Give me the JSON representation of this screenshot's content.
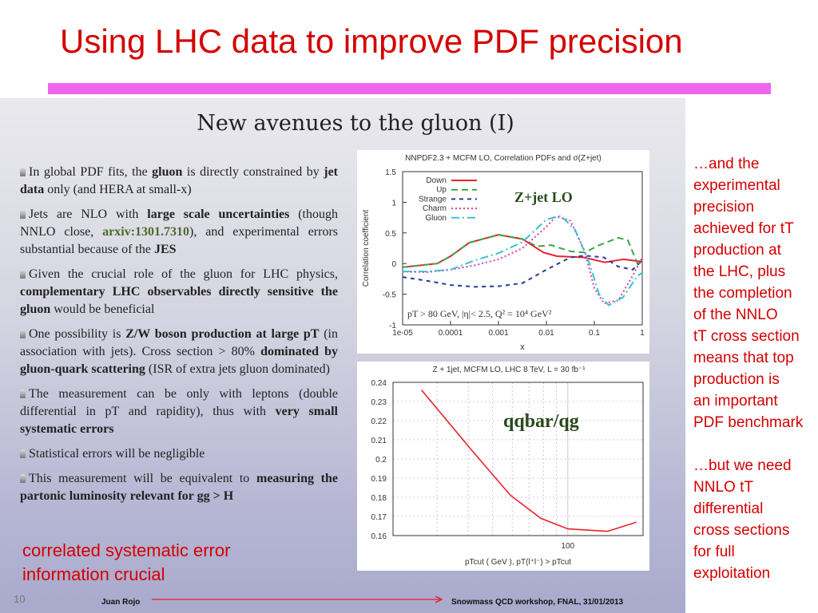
{
  "title": "Using LHC data to improve PDF precision",
  "embedded_slide": {
    "title": "New avenues to the gluon (I)",
    "bullets": [
      [
        [
          "In global PDF fits, the ",
          ""
        ],
        [
          "gluon",
          "b"
        ],
        [
          " is directly constrained by ",
          ""
        ],
        [
          "jet data",
          "b"
        ],
        [
          " only (and HERA at small-x)",
          ""
        ]
      ],
      [
        [
          "Jets are NLO with ",
          ""
        ],
        [
          "large scale uncertainties",
          "b"
        ],
        [
          " (though NNLO close, ",
          ""
        ],
        [
          "arxiv:1301.7310",
          "g"
        ],
        [
          "), and experimental errors substantial because of the ",
          ""
        ],
        [
          "JES",
          "b"
        ]
      ],
      [
        [
          "Given the crucial role of the gluon for LHC physics, ",
          ""
        ],
        [
          "complementary LHC observables directly sensitive the gluon",
          "b"
        ],
        [
          " would be beneficial",
          ""
        ]
      ],
      [
        [
          "One possibility is ",
          ""
        ],
        [
          "Z/W boson production at large pT",
          "b"
        ],
        [
          " (in association with jets). Cross section > 80% ",
          ""
        ],
        [
          "dominated by gluon-quark scattering",
          "b"
        ],
        [
          " (ISR of extra jets gluon dominated)",
          ""
        ]
      ],
      [
        [
          "The measurement can be only with leptons (double differential in pT and rapidity), thus with ",
          ""
        ],
        [
          "very small systematic errors",
          "b"
        ]
      ],
      [
        [
          "Statistical errors will be negligible",
          ""
        ]
      ],
      [
        [
          "This measurement will be equivalent to ",
          ""
        ],
        [
          "measuring the partonic luminosity relevant for gg > H",
          "b"
        ]
      ]
    ],
    "note_lines": [
      "correlated systematic error",
      "information crucial"
    ],
    "page_number": "10",
    "author": "Juan Rojo",
    "conference": "Snowmass QCD workshop, FNAL, 31/01/2013"
  },
  "right_text": [
    "…and the",
    "experimental",
    "precision",
    "achieved for tT",
    "production at",
    "the LHC, plus",
    "the completion",
    "of the NNLO",
    "tT cross section",
    "means that top",
    "production is",
    "an important",
    "PDF benchmark",
    "",
    "…but we need",
    "NNLO tT",
    "differential",
    "cross sections",
    "for full",
    "exploitation"
  ],
  "chart_data": [
    {
      "type": "line",
      "title": "NNPDF2.3 + MCFM LO,  Correlation PDFs and σ(Z+jet)",
      "xlabel": "x",
      "ylabel": "Correlation coefficient",
      "xscale": "log",
      "xlim_log10": [
        -5,
        0
      ],
      "ylim": [
        -1,
        1.5
      ],
      "xticks": [
        "1e-05",
        "0.0001",
        "0.001",
        "0.01",
        "0.1",
        "1"
      ],
      "yticks": [
        "1.5",
        "1",
        "0.5",
        "0",
        "-0.5",
        "-1"
      ],
      "annotation": "Z+jet LO",
      "cuts": "pT > 80 GeV, |η|< 2.5,  Q² = 10⁴ GeV²",
      "legend": "top-left",
      "series": [
        {
          "name": "Down",
          "color": "#e8222e",
          "dash": "",
          "points": [
            [
              -5,
              -0.06
            ],
            [
              -4.28,
              0
            ],
            [
              -4,
              0.12
            ],
            [
              -3.61,
              0.34
            ],
            [
              -3,
              0.47
            ],
            [
              -2.5,
              0.4
            ],
            [
              -2.06,
              0.18
            ],
            [
              -1.78,
              0.12
            ],
            [
              -1.22,
              0.1
            ],
            [
              -0.78,
              0.02
            ],
            [
              -0.39,
              0.07
            ],
            [
              0,
              0.03
            ]
          ]
        },
        {
          "name": "Up",
          "color": "#3aa64a",
          "dash": "8,5",
          "points": [
            [
              -5,
              -0.06
            ],
            [
              -4.28,
              0
            ],
            [
              -4,
              0.12
            ],
            [
              -3.61,
              0.34
            ],
            [
              -3,
              0.47
            ],
            [
              -2.5,
              0.4
            ],
            [
              -2.2,
              0.28
            ],
            [
              -1.9,
              0.3
            ],
            [
              -1.5,
              0.2
            ],
            [
              -1.2,
              0.18
            ],
            [
              -0.9,
              0.3
            ],
            [
              -0.5,
              0.42
            ],
            [
              -0.3,
              0.38
            ],
            [
              -0.1,
              0.0
            ],
            [
              0,
              0.05
            ]
          ]
        },
        {
          "name": "Strange",
          "color": "#2a3a9a",
          "dash": "5,5",
          "points": [
            [
              -5,
              -0.22
            ],
            [
              -4.5,
              -0.28
            ],
            [
              -4,
              -0.35
            ],
            [
              -3.5,
              -0.38
            ],
            [
              -3,
              -0.37
            ],
            [
              -2.5,
              -0.32
            ],
            [
              -2,
              -0.1
            ],
            [
              -1.5,
              0.1
            ],
            [
              -1.2,
              0.13
            ],
            [
              -0.8,
              0.1
            ],
            [
              -0.5,
              -0.05
            ],
            [
              -0.2,
              -0.1
            ],
            [
              0,
              0.05
            ]
          ]
        },
        {
          "name": "Charm",
          "color": "#d040b0",
          "dash": "2,3",
          "points": [
            [
              -5,
              -0.13
            ],
            [
              -4.5,
              -0.14
            ],
            [
              -4,
              -0.1
            ],
            [
              -3.5,
              -0.03
            ],
            [
              -3,
              0.07
            ],
            [
              -2.5,
              0.25
            ],
            [
              -2,
              0.6
            ],
            [
              -1.8,
              0.77
            ],
            [
              -1.5,
              0.7
            ],
            [
              -1.2,
              0.2
            ],
            [
              -1,
              -0.4
            ],
            [
              -0.8,
              -0.65
            ],
            [
              -0.5,
              -0.6
            ],
            [
              -0.2,
              -0.2
            ],
            [
              0,
              0.1
            ]
          ]
        },
        {
          "name": "Gluon",
          "color": "#3cc0d0",
          "dash": "10,4,2,4",
          "points": [
            [
              -5,
              -0.13
            ],
            [
              -4.5,
              -0.13
            ],
            [
              -4,
              -0.1
            ],
            [
              -3.5,
              0.05
            ],
            [
              -3,
              0.17
            ],
            [
              -2.5,
              0.35
            ],
            [
              -2,
              0.72
            ],
            [
              -1.7,
              0.78
            ],
            [
              -1.4,
              0.55
            ],
            [
              -1.1,
              0.0
            ],
            [
              -0.9,
              -0.5
            ],
            [
              -0.7,
              -0.68
            ],
            [
              -0.4,
              -0.55
            ],
            [
              -0.1,
              -0.2
            ],
            [
              0,
              -0.15
            ]
          ]
        }
      ]
    },
    {
      "type": "line",
      "title": "Z + 1jet, MCFM LO, LHC 8 TeV, L = 30 fb⁻¹",
      "xlabel": "pTcut ( GeV ),   pT(l⁺l⁻) > pTcut",
      "xscale": "log",
      "xlim": [
        20,
        200
      ],
      "ylim": [
        0.16,
        0.24
      ],
      "xticks": [
        "100"
      ],
      "yticks": [
        "0.24",
        "0.23",
        "0.22",
        "0.21",
        "0.2",
        "0.19",
        "0.18",
        "0.17",
        "0.16"
      ],
      "annotation": "qqbar/qg",
      "series": [
        {
          "name": "qqbar/qg",
          "color": "#e8222e",
          "points": [
            [
              26,
              0.236
            ],
            [
              41,
              0.205
            ],
            [
              59,
              0.181
            ],
            [
              78,
              0.169
            ],
            [
              100,
              0.1635
            ],
            [
              144,
              0.1622
            ],
            [
              188,
              0.167
            ]
          ]
        }
      ]
    }
  ]
}
